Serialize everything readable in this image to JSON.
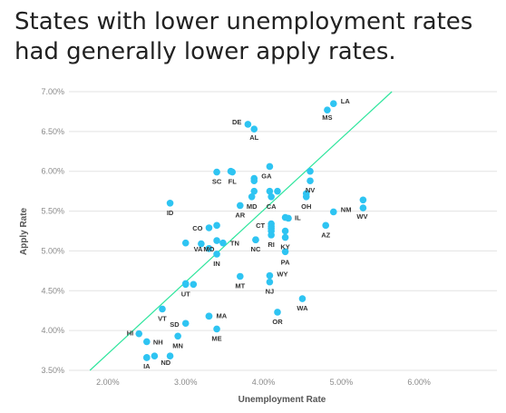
{
  "title": {
    "line1": "States with lower unemployment rates",
    "line2": "had generally lower apply rates."
  },
  "colors": {
    "point": "#2ec4f2",
    "trend": "#2ee59d",
    "grid": "#e3e3e3",
    "tick": "#8a8a8a"
  },
  "chart_data": {
    "type": "scatter",
    "title": "States with lower unemployment rates had generally lower apply rates.",
    "xlabel": "Unemployment Rate",
    "ylabel": "Apply Rate",
    "xlim": [
      0.015,
      0.07
    ],
    "ylim": [
      0.035,
      0.07
    ],
    "x_ticks": [
      0.02,
      0.03,
      0.04,
      0.05,
      0.06
    ],
    "x_tick_labels": [
      "2.00%",
      "3.00%",
      "4.00%",
      "5.00%",
      "6.00%"
    ],
    "y_ticks": [
      0.035,
      0.04,
      0.045,
      0.05,
      0.055,
      0.06,
      0.065,
      0.07
    ],
    "y_tick_labels": [
      "3.50%",
      "4.00%",
      "4.50%",
      "5.00%",
      "5.50%",
      "6.00%",
      "6.50%",
      "7.00%"
    ],
    "grid": "horizontal",
    "trendline": {
      "x": [
        0.0177,
        0.0565
      ],
      "y": [
        0.035,
        0.07
      ]
    },
    "points": [
      {
        "label": "LA",
        "x": 0.049,
        "y": 0.0685
      },
      {
        "label": "MS",
        "x": 0.0482,
        "y": 0.0677
      },
      {
        "label": "DE",
        "x": 0.038,
        "y": 0.0659
      },
      {
        "label": "AL",
        "x": 0.0388,
        "y": 0.0653
      },
      {
        "label": "",
        "x": 0.0408,
        "y": 0.0606
      },
      {
        "label": "",
        "x": 0.046,
        "y": 0.06
      },
      {
        "label": "",
        "x": 0.0358,
        "y": 0.06
      },
      {
        "label": "SC",
        "x": 0.034,
        "y": 0.0599
      },
      {
        "label": "FL",
        "x": 0.036,
        "y": 0.0599
      },
      {
        "label": "GA",
        "x": 0.0388,
        "y": 0.0591
      },
      {
        "label": "",
        "x": 0.0388,
        "y": 0.0588
      },
      {
        "label": "NV",
        "x": 0.046,
        "y": 0.0588
      },
      {
        "label": "",
        "x": 0.0388,
        "y": 0.0575
      },
      {
        "label": "",
        "x": 0.0408,
        "y": 0.0575
      },
      {
        "label": "",
        "x": 0.0418,
        "y": 0.0575
      },
      {
        "label": "MD",
        "x": 0.0385,
        "y": 0.0568
      },
      {
        "label": "CA",
        "x": 0.041,
        "y": 0.0568
      },
      {
        "label": "",
        "x": 0.0455,
        "y": 0.0572
      },
      {
        "label": "OH",
        "x": 0.0455,
        "y": 0.0568
      },
      {
        "label": "",
        "x": 0.0528,
        "y": 0.0564
      },
      {
        "label": "ID",
        "x": 0.028,
        "y": 0.056
      },
      {
        "label": "AR",
        "x": 0.037,
        "y": 0.0557
      },
      {
        "label": "NM",
        "x": 0.049,
        "y": 0.0549
      },
      {
        "label": "WV",
        "x": 0.0528,
        "y": 0.0554
      },
      {
        "label": "",
        "x": 0.0428,
        "y": 0.0542
      },
      {
        "label": "IL",
        "x": 0.0432,
        "y": 0.0541
      },
      {
        "label": "",
        "x": 0.041,
        "y": 0.0534
      },
      {
        "label": "CT",
        "x": 0.041,
        "y": 0.0531
      },
      {
        "label": "",
        "x": 0.034,
        "y": 0.0532
      },
      {
        "label": "CO",
        "x": 0.033,
        "y": 0.0529
      },
      {
        "label": "",
        "x": 0.041,
        "y": 0.0528
      },
      {
        "label": "AZ",
        "x": 0.048,
        "y": 0.0532
      },
      {
        "label": "",
        "x": 0.041,
        "y": 0.0525
      },
      {
        "label": "RI",
        "x": 0.041,
        "y": 0.052
      },
      {
        "label": "",
        "x": 0.0428,
        "y": 0.0525
      },
      {
        "label": "KY",
        "x": 0.0428,
        "y": 0.0517
      },
      {
        "label": "",
        "x": 0.039,
        "y": 0.0514
      },
      {
        "label": "NC",
        "x": 0.039,
        "y": 0.0514
      },
      {
        "label": "",
        "x": 0.034,
        "y": 0.0513
      },
      {
        "label": "",
        "x": 0.03,
        "y": 0.051
      },
      {
        "label": "",
        "x": 0.032,
        "y": 0.0509
      },
      {
        "label": "TN",
        "x": 0.0348,
        "y": 0.051
      },
      {
        "label": "VA",
        "x": 0.033,
        "y": 0.0503
      },
      {
        "label": "MO",
        "x": 0.033,
        "y": 0.0503
      },
      {
        "label": "PA",
        "x": 0.0428,
        "y": 0.0499
      },
      {
        "label": "IN",
        "x": 0.034,
        "y": 0.0496
      },
      {
        "label": "",
        "x": 0.03,
        "y": 0.0459
      },
      {
        "label": "",
        "x": 0.031,
        "y": 0.0458
      },
      {
        "label": "UT",
        "x": 0.03,
        "y": 0.0458
      },
      {
        "label": "MT",
        "x": 0.037,
        "y": 0.0468
      },
      {
        "label": "WY",
        "x": 0.0408,
        "y": 0.0469
      },
      {
        "label": "NJ",
        "x": 0.0408,
        "y": 0.0461
      },
      {
        "label": "WA",
        "x": 0.045,
        "y": 0.044
      },
      {
        "label": "VT",
        "x": 0.027,
        "y": 0.0427
      },
      {
        "label": "",
        "x": 0.033,
        "y": 0.0418
      },
      {
        "label": "MA",
        "x": 0.033,
        "y": 0.0418
      },
      {
        "label": "OR",
        "x": 0.0418,
        "y": 0.0423
      },
      {
        "label": "SD",
        "x": 0.03,
        "y": 0.0409
      },
      {
        "label": "ME",
        "x": 0.034,
        "y": 0.0402
      },
      {
        "label": "HI",
        "x": 0.024,
        "y": 0.0396
      },
      {
        "label": "MN",
        "x": 0.029,
        "y": 0.0393
      },
      {
        "label": "NH",
        "x": 0.025,
        "y": 0.0386
      },
      {
        "label": "",
        "x": 0.025,
        "y": 0.0366
      },
      {
        "label": "IA",
        "x": 0.025,
        "y": 0.0366
      },
      {
        "label": "ND",
        "x": 0.026,
        "y": 0.0368
      },
      {
        "label": "",
        "x": 0.028,
        "y": 0.0368
      }
    ]
  }
}
